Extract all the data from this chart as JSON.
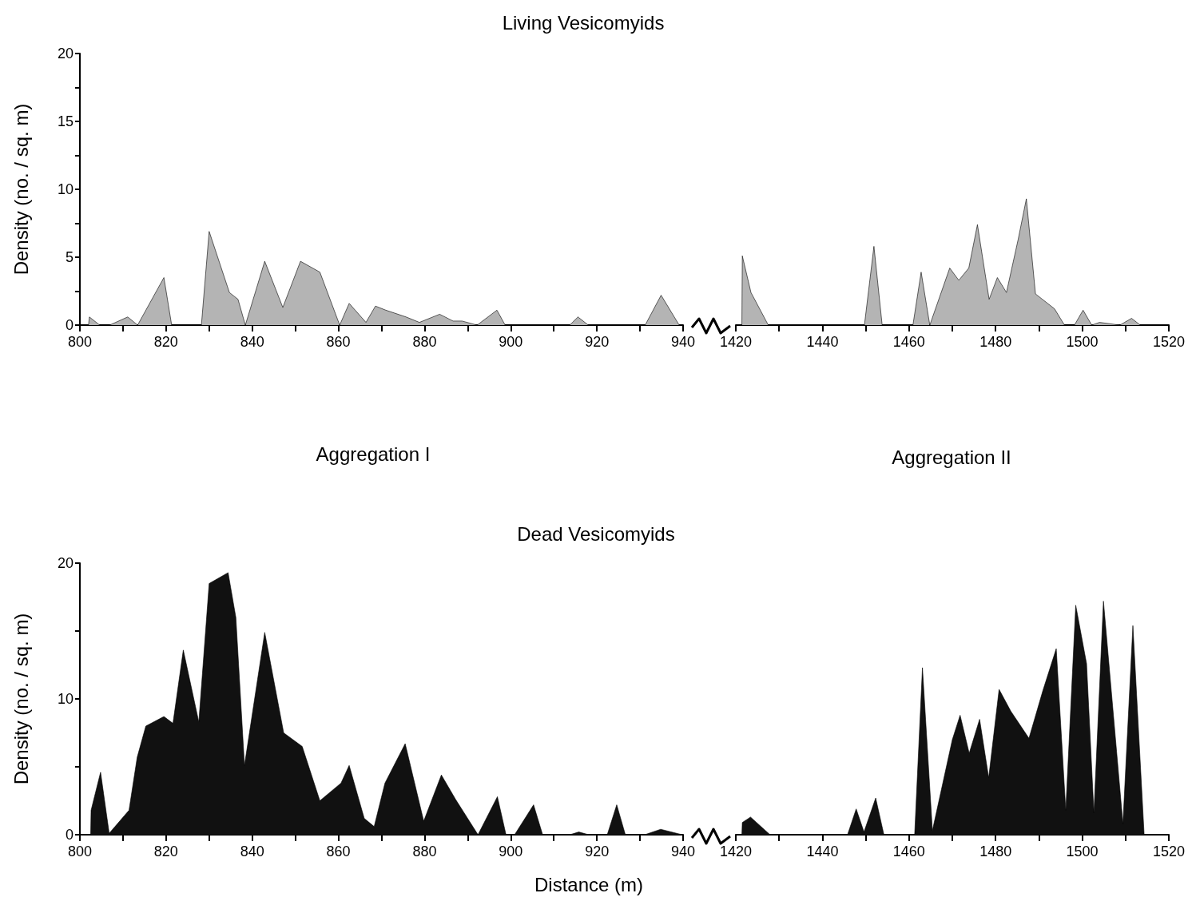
{
  "chart_data": [
    {
      "type": "area",
      "title": "Living Vesicomyids",
      "ylabel": "Density (no. / sq. m)",
      "marker": "none",
      "color": "#b4b4b4",
      "x": [
        802,
        802.2,
        804.6,
        806.9,
        811.1,
        813.4,
        819.5,
        821.3,
        828.2,
        830,
        834.7,
        836.7,
        838.4,
        842.9,
        847.1,
        851.2,
        855.7,
        860.3,
        862.5,
        866.4,
        868.6,
        871,
        875.7,
        878.8,
        883.5,
        886.6,
        888.7,
        892.2,
        896.8,
        898.7,
        913.7,
        915.6,
        918,
        931.2,
        934.9,
        939.1
      ],
      "values": [
        0,
        0.6,
        0,
        0,
        0.6,
        0,
        3.5,
        0,
        0,
        6.9,
        2.4,
        1.9,
        0,
        4.7,
        1.3,
        4.7,
        3.9,
        0,
        1.6,
        0.2,
        1.4,
        1.1,
        0.6,
        0.2,
        0.8,
        0.3,
        0.3,
        0,
        1.1,
        0,
        0,
        0.6,
        0,
        0,
        2.2,
        0
      ],
      "xlim": [
        800,
        940
      ],
      "xticks": [
        800,
        {
          "value": 810,
          "label": null
        },
        820,
        {
          "value": 830,
          "label": null
        },
        840,
        {
          "value": 850,
          "label": null
        },
        860,
        {
          "value": 870,
          "label": null
        },
        880,
        {
          "value": 890,
          "label": null
        },
        900,
        {
          "value": 910,
          "label": null
        },
        920,
        {
          "value": 930,
          "label": null
        },
        940
      ],
      "ylim": [
        0,
        20
      ],
      "yticks": [
        0,
        {
          "value": 2.5,
          "label": null
        },
        5,
        {
          "value": 7.5,
          "label": null
        },
        10,
        {
          "value": 12.5,
          "label": null
        },
        15,
        {
          "value": 17.5,
          "label": null
        },
        20
      ]
    },
    {
      "type": "area",
      "marker": "none",
      "color": "#b4b4b4",
      "tick_labels": "x",
      "x": [
        1421.4,
        1421.5,
        1423.5,
        1427.5,
        1449.7,
        1451.9,
        1453.8,
        1460.9,
        1462.8,
        1464.8,
        1469.4,
        1471.5,
        1473.8,
        1475.8,
        1478.5,
        1480.4,
        1482.5,
        1485.2,
        1487.1,
        1489.2,
        1493.6,
        1495.9,
        1498.2,
        1500.2,
        1502.2,
        1504,
        1508.7,
        1511.4,
        1513.4
      ],
      "values": [
        0,
        5.1,
        2.4,
        0,
        0,
        5.8,
        0,
        0,
        3.9,
        0,
        4.2,
        3.3,
        4.2,
        7.4,
        1.9,
        3.5,
        2.4,
        6.3,
        9.3,
        2.3,
        1.2,
        0,
        0,
        1.1,
        0,
        0.2,
        0,
        0.5,
        0
      ],
      "xlim": [
        1420,
        1520
      ],
      "xticks": [
        1420,
        {
          "value": 1430,
          "label": null
        },
        1440,
        {
          "value": 1450,
          "label": null
        },
        1460,
        {
          "value": 1470,
          "label": null
        },
        1480,
        {
          "value": 1490,
          "label": null
        },
        1500,
        {
          "value": 1510,
          "label": null
        },
        1520
      ],
      "ylim": [
        0,
        20
      ]
    },
    {
      "type": "area",
      "title": "Dead Vesicomyids",
      "ylabel": "Density (no. / sq. m)",
      "xlabel": "Distance (m)",
      "annotations": [
        "Aggregation I"
      ],
      "marker": "none",
      "color": "#111111",
      "x": [
        802.5,
        802.6,
        804.8,
        806.8,
        811.4,
        813.3,
        815.3,
        819.5,
        821.6,
        824,
        827.6,
        830,
        834.4,
        836.2,
        838.2,
        842.9,
        847.3,
        851.6,
        855.7,
        860.6,
        862.5,
        866,
        868.3,
        870.8,
        875.5,
        879.8,
        883.9,
        887.2,
        892.4,
        896.9,
        898.9,
        900.9,
        905.3,
        907.4,
        913.7,
        915.8,
        918.1,
        922.4,
        924.6,
        926.6,
        931.1,
        934.8,
        939.8
      ],
      "values": [
        0,
        1.8,
        4.6,
        0.1,
        1.8,
        5.7,
        8,
        8.7,
        8.2,
        13.6,
        8.3,
        18.5,
        19.3,
        16,
        5.1,
        14.9,
        7.5,
        6.5,
        2.5,
        3.8,
        5.1,
        1.2,
        0.6,
        3.8,
        6.7,
        1,
        4.4,
        2.6,
        0,
        2.8,
        0,
        0,
        2.2,
        0,
        0,
        0.2,
        0,
        0,
        2.2,
        0,
        0,
        0.4,
        0
      ],
      "xlim": [
        800,
        940
      ],
      "xticks": [
        800,
        {
          "value": 810,
          "label": null
        },
        820,
        {
          "value": 830,
          "label": null
        },
        840,
        {
          "value": 850,
          "label": null
        },
        860,
        {
          "value": 870,
          "label": null
        },
        880,
        {
          "value": 890,
          "label": null
        },
        900,
        {
          "value": 910,
          "label": null
        },
        920,
        {
          "value": 930,
          "label": null
        },
        940
      ],
      "ylim": [
        0,
        20
      ],
      "yticks": [
        0,
        {
          "value": 5,
          "label": null
        },
        10,
        {
          "value": 15,
          "label": null
        },
        20
      ]
    },
    {
      "type": "area",
      "annotations": [
        "Aggregation II"
      ],
      "marker": "none",
      "color": "#111111",
      "tick_labels": "x",
      "x": [
        1421.4,
        1421.5,
        1423.4,
        1427.9,
        1445.8,
        1447.8,
        1449.6,
        1452.3,
        1454.2,
        1461.3,
        1463.1,
        1465.4,
        1470,
        1471.8,
        1473.9,
        1476.3,
        1478.4,
        1480.8,
        1483.5,
        1487.7,
        1490.9,
        1494,
        1496.2,
        1498.5,
        1501,
        1502.7,
        1504.9,
        1509.4,
        1511.7,
        1514.3
      ],
      "values": [
        0,
        0.9,
        1.3,
        0,
        0,
        1.9,
        0.2,
        2.7,
        0,
        0,
        12.3,
        0.3,
        7,
        8.8,
        6,
        8.5,
        4.2,
        10.7,
        9.1,
        7.1,
        10.6,
        13.7,
        1.8,
        16.9,
        12.6,
        1.6,
        17.2,
        0.8,
        15.4,
        0
      ],
      "xlim": [
        1420,
        1520
      ],
      "xticks": [
        1420,
        {
          "value": 1430,
          "label": null
        },
        1440,
        {
          "value": 1450,
          "label": null
        },
        1460,
        {
          "value": 1470,
          "label": null
        },
        1480,
        {
          "value": 1490,
          "label": null
        },
        1500,
        {
          "value": 1510,
          "label": null
        },
        1520
      ],
      "ylim": [
        0,
        20
      ]
    }
  ]
}
